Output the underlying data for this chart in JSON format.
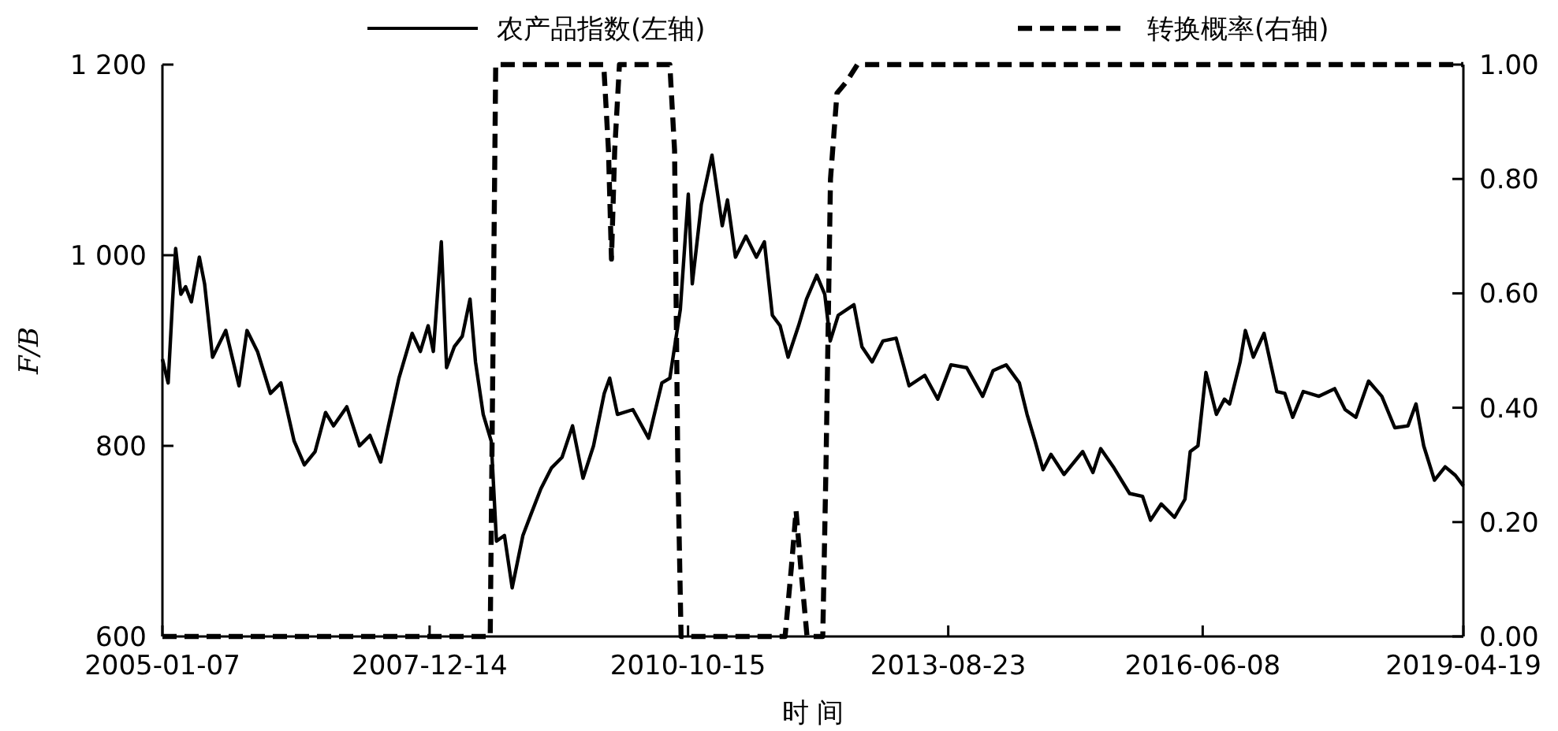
{
  "chart_data": {
    "type": "line",
    "xlabel": "时 间",
    "ylabel": "F/B",
    "legend": "top",
    "grid": false,
    "xlim": [
      "2005-01-07",
      "2019-04-19"
    ],
    "xticks": [
      {
        "value": "2005-01-07",
        "label": "2005-01-07"
      },
      {
        "value": "2007-12-14",
        "label": "2007-12-14"
      },
      {
        "value": "2010-10-15",
        "label": "2010-10-15"
      },
      {
        "value": "2013-08-23",
        "label": "2013-08-23"
      },
      {
        "value": "2016-06-08",
        "label": "2016-06-08"
      },
      {
        "value": "2019-04-19",
        "label": "2019-04-19"
      }
    ],
    "ylim": [
      600,
      1200
    ],
    "yticks": [
      600,
      800,
      {
        "value": 1000,
        "label": "1 000"
      },
      {
        "value": 1200,
        "label": "1 200"
      }
    ],
    "y2lim": [
      0,
      1
    ],
    "y2ticks": [
      {
        "value": 0,
        "label": "0.00"
      },
      {
        "value": 0.2,
        "label": "0.20"
      },
      {
        "value": 0.4,
        "label": "0.40"
      },
      {
        "value": 0.6,
        "label": "0.60"
      },
      {
        "value": 0.8,
        "label": "0.80"
      },
      {
        "value": 1,
        "label": "1.00"
      }
    ],
    "series": [
      {
        "name": "农产品指数(左轴)",
        "color": "#000000",
        "line_style": "solid",
        "x": [
          "2005-01-07",
          "2005-01-30",
          "2005-02-16",
          "2005-03-01",
          "2005-03-22",
          "2005-04-10",
          "2005-05-03",
          "2005-06-04",
          "2005-06-25",
          "2005-07-27",
          "2005-08-28",
          "2005-09-18",
          "2005-11-10",
          "2005-12-12",
          "2006-01-23",
          "2006-03-16",
          "2006-04-27",
          "2006-06-19",
          "2006-07-30",
          "2006-09-11",
          "2006-10-23",
          "2006-11-24",
          "2007-01-16",
          "2007-03-08",
          "2007-04-19",
          "2007-06-01",
          "2007-07-02",
          "2007-08-13",
          "2007-10-05",
          "2007-11-07",
          "2007-12-08",
          "2007-12-29",
          "2008-01-30",
          "2008-02-20",
          "2008-03-22",
          "2008-04-23",
          "2008-05-24",
          "2008-06-15",
          "2008-07-16",
          "2008-08-17",
          "2008-09-07",
          "2008-10-09",
          "2008-11-09",
          "2008-12-22",
          "2009-01-23",
          "2009-03-04",
          "2009-04-16",
          "2009-05-28",
          "2009-07-09",
          "2009-08-20",
          "2009-10-01",
          "2009-11-13",
          "2009-12-05",
          "2010-01-05",
          "2010-03-08",
          "2010-05-10",
          "2010-07-02",
          "2010-08-03",
          "2010-09-14",
          "2010-10-16",
          "2010-11-01",
          "2010-12-07",
          "2011-01-19",
          "2011-03-01",
          "2011-03-22",
          "2011-04-23",
          "2011-06-04",
          "2011-07-16",
          "2011-08-17",
          "2011-09-18",
          "2011-10-19",
          "2011-11-20",
          "2012-01-01",
          "2012-02-02",
          "2012-03-14",
          "2012-04-15",
          "2012-05-07",
          "2012-06-08",
          "2012-08-10",
          "2012-09-11",
          "2012-10-22",
          "2012-12-04",
          "2013-01-26",
          "2013-03-19",
          "2013-05-21",
          "2013-07-12",
          "2013-09-03",
          "2013-11-05",
          "2014-01-08",
          "2014-02-19",
          "2014-04-12",
          "2014-06-04",
          "2014-07-05",
          "2014-08-06",
          "2014-09-07",
          "2014-10-09",
          "2014-11-30",
          "2015-02-13",
          "2015-03-26",
          "2015-04-26",
          "2015-06-18",
          "2015-08-20",
          "2015-10-11",
          "2015-11-12",
          "2015-12-25",
          "2016-02-16",
          "2016-03-29",
          "2016-04-19",
          "2016-05-20",
          "2016-06-21",
          "2016-08-02",
          "2016-09-03",
          "2016-09-24",
          "2016-11-05",
          "2016-11-26",
          "2016-12-28",
          "2017-02-09",
          "2017-04-01",
          "2017-05-03",
          "2017-06-04",
          "2017-07-16",
          "2017-09-17",
          "2017-11-19",
          "2017-12-31",
          "2018-02-12",
          "2018-04-04",
          "2018-05-27",
          "2018-07-18",
          "2018-09-09",
          "2018-10-11",
          "2018-11-11",
          "2018-12-24",
          "2019-02-05",
          "2019-03-18",
          "2019-04-19"
        ],
        "values": [
          891,
          866,
          949,
          1007,
          959,
          967,
          951,
          998,
          970,
          893,
          910,
          921,
          863,
          921,
          899,
          855,
          866,
          805,
          780,
          794,
          835,
          821,
          841,
          800,
          811,
          783,
          821,
          871,
          918,
          899,
          926,
          899,
          1014,
          882,
          904,
          915,
          954,
          888,
          833,
          805,
          700,
          706,
          651,
          706,
          728,
          755,
          777,
          788,
          821,
          766,
          800,
          855,
          871,
          833,
          838,
          808,
          866,
          871,
          943,
          1064,
          970,
          1053,
          1105,
          1031,
          1058,
          998,
          1020,
          998,
          1014,
          937,
          926,
          893,
          926,
          954,
          979,
          959,
          910,
          937,
          948,
          904,
          888,
          910,
          913,
          863,
          874,
          849,
          885,
          882,
          852,
          879,
          885,
          866,
          833,
          805,
          775,
          791,
          770,
          794,
          772,
          797,
          777,
          750,
          747,
          722,
          739,
          725,
          744,
          794,
          800,
          877,
          833,
          849,
          844,
          888,
          921,
          893,
          918,
          857,
          855,
          830,
          857,
          852,
          860,
          838,
          830,
          868,
          852,
          819,
          821,
          844,
          800,
          764,
          778,
          769,
          758
        ]
      },
      {
        "name": "转换概率(右轴)",
        "color": "#000000",
        "line_style": "dashed",
        "axis": "y2",
        "x": [
          "2005-01-07",
          "2008-08-13",
          "2008-09-04",
          "2009-11-11",
          "2009-11-30",
          "2009-12-12",
          "2009-12-25",
          "2010-01-13",
          "2010-08-03",
          "2010-08-22",
          "2010-09-04",
          "2010-09-17",
          "2011-11-08",
          "2011-12-03",
          "2011-12-22",
          "2012-01-10",
          "2012-02-04",
          "2012-04-07",
          "2012-04-20",
          "2012-05-08",
          "2012-06-03",
          "2012-07-11",
          "2012-08-24",
          "2019-04-19"
        ],
        "values": [
          0,
          0,
          1,
          1,
          0.85,
          0.66,
          0.85,
          1,
          1,
          0.85,
          0.3,
          0,
          0,
          0.12,
          0.22,
          0.12,
          0,
          0,
          0.3,
          0.8,
          0.95,
          0.97,
          1,
          1
        ]
      }
    ]
  }
}
